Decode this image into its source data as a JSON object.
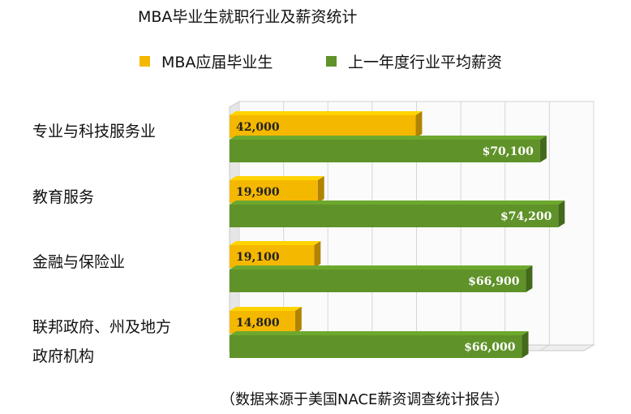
{
  "chart_data": {
    "type": "bar",
    "orientation": "horizontal",
    "title": "MBA毕业生就职行业及薪资统计",
    "categories": [
      "专业与科技服务业",
      "教育服务",
      "金融与保险业",
      "联邦政府、州及地方政府机构"
    ],
    "category_lines": [
      [
        "专业与科技服务业"
      ],
      [
        "教育服务"
      ],
      [
        "金融与保险业"
      ],
      [
        "联邦政府、州及地方",
        "政府机构"
      ]
    ],
    "series": [
      {
        "name": "MBA应届毕业生",
        "values": [
          42000,
          19900,
          19100,
          14800
        ],
        "labels": [
          "42,000",
          "19,900",
          "19,100",
          "14,800"
        ],
        "color": "#f5b800"
      },
      {
        "name": "上一年度行业平均薪资",
        "values": [
          70100,
          74200,
          66900,
          66000
        ],
        "labels": [
          "$70,100",
          "$74,200",
          "$66,900",
          "$66,000"
        ],
        "color": "#5f9228"
      }
    ],
    "legend_position": "top",
    "grid": true,
    "xlim": [
      0,
      80000
    ],
    "note": "（数据来源于美国NACE薪资调查统计报告）"
  }
}
